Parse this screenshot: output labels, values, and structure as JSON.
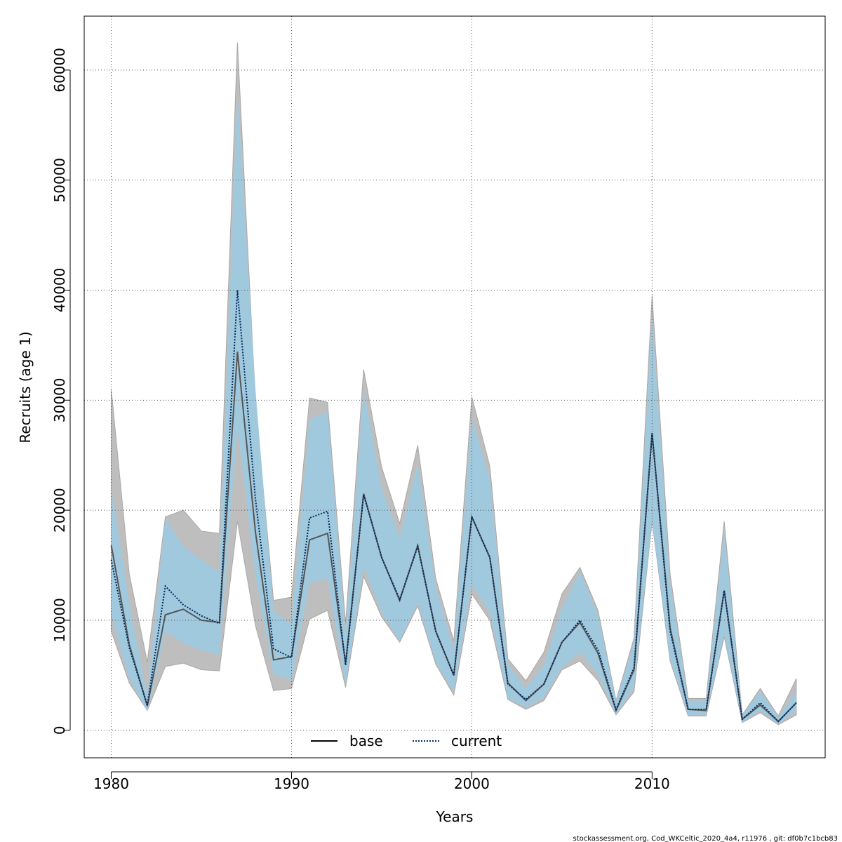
{
  "chart_data": {
    "type": "area",
    "title": "",
    "xlabel": "Years",
    "ylabel": "Recruits (age 1)",
    "xlim": [
      1978.5,
      2019.6
    ],
    "ylim": [
      -2500,
      64900
    ],
    "x_ticks": [
      1980,
      1990,
      2000,
      2010
    ],
    "x_tick_labels": [
      "1980",
      "1990",
      "2000",
      "2010"
    ],
    "y_ticks": [
      0,
      10000,
      20000,
      30000,
      40000,
      50000,
      60000
    ],
    "y_tick_labels": [
      "0",
      "10000",
      "20000",
      "30000",
      "40000",
      "50000",
      "60000"
    ],
    "grid": true,
    "legend_position": "bottom-center",
    "x": [
      1980,
      1981,
      1982,
      1983,
      1984,
      1985,
      1986,
      1987,
      1988,
      1989,
      1990,
      1991,
      1992,
      1993,
      1994,
      1995,
      1996,
      1997,
      1998,
      1999,
      2000,
      2001,
      2002,
      2003,
      2004,
      2005,
      2006,
      2007,
      2008,
      2009,
      2010,
      2011,
      2012,
      2013,
      2014,
      2015,
      2016,
      2017,
      2018
    ],
    "series": [
      {
        "name": "base",
        "line_style": "solid",
        "line_color": "#000000",
        "band_color": "#bebebe",
        "values": [
          16800,
          7800,
          2200,
          10500,
          11000,
          10000,
          9800,
          34400,
          18000,
          6400,
          6700,
          17300,
          17900,
          6100,
          21500,
          15700,
          11800,
          16800,
          9000,
          5000,
          19400,
          15700,
          4300,
          2700,
          4200,
          8000,
          9800,
          7000,
          1800,
          5500,
          27000,
          9300,
          1900,
          1800,
          12700,
          1000,
          2300,
          800,
          2500
        ],
        "lower": [
          9000,
          4300,
          1800,
          5800,
          6100,
          5500,
          5400,
          19000,
          9500,
          3600,
          3800,
          10100,
          10900,
          3900,
          14000,
          10300,
          8000,
          11300,
          6000,
          3200,
          12400,
          10000,
          2800,
          1900,
          2700,
          5500,
          6300,
          4500,
          1400,
          3500,
          19000,
          6300,
          1300,
          1300,
          8500,
          700,
          1600,
          500,
          1400
        ],
        "upper": [
          31000,
          14200,
          6200,
          19400,
          20000,
          18100,
          17900,
          62500,
          29700,
          11800,
          12100,
          30200,
          29800,
          9700,
          32800,
          23900,
          18800,
          25900,
          13800,
          8100,
          30300,
          24000,
          6500,
          4500,
          7100,
          12400,
          14800,
          10900,
          2700,
          8400,
          39500,
          14200,
          2900,
          2900,
          19000,
          1400,
          3800,
          1300,
          4700
        ]
      },
      {
        "name": "current",
        "line_style": "dotted",
        "line_color": "#002a5c",
        "band_color": "#9ecae1",
        "values": [
          15500,
          7500,
          2300,
          13100,
          11400,
          10400,
          9700,
          40000,
          21000,
          7400,
          6600,
          19300,
          19900,
          5900,
          21400,
          15700,
          11900,
          16700,
          9000,
          5000,
          19400,
          15700,
          4200,
          2800,
          4200,
          8000,
          10000,
          7300,
          1900,
          5700,
          27000,
          9000,
          1900,
          1900,
          12700,
          1000,
          2500,
          800,
          2500
        ],
        "lower": [
          10500,
          4700,
          1700,
          9000,
          7900,
          7300,
          6800,
          27500,
          14000,
          5100,
          4600,
          13400,
          13800,
          4100,
          14900,
          10700,
          8100,
          11600,
          6200,
          3500,
          13300,
          10700,
          2900,
          2100,
          3000,
          5700,
          7100,
          5100,
          1400,
          4000,
          19000,
          6400,
          1400,
          1400,
          8700,
          700,
          1800,
          600,
          1800
        ],
        "upper": [
          22000,
          11500,
          3100,
          19300,
          16700,
          15500,
          14400,
          58000,
          31000,
          10800,
          9700,
          28200,
          29000,
          8700,
          31000,
          22000,
          17500,
          24200,
          13000,
          7300,
          28400,
          22800,
          6000,
          3800,
          5900,
          11100,
          14400,
          10500,
          2600,
          8000,
          37700,
          13300,
          2700,
          2700,
          18000,
          1400,
          3500,
          1200,
          3500
        ]
      }
    ],
    "legend": [
      {
        "label": "base",
        "line_style": "solid"
      },
      {
        "label": "current",
        "line_style": "dotted"
      }
    ]
  },
  "footer": "stockassessment.org, Cod_WKCeltic_2020_4a4, r11976 , git: df0b7c1bcb83"
}
